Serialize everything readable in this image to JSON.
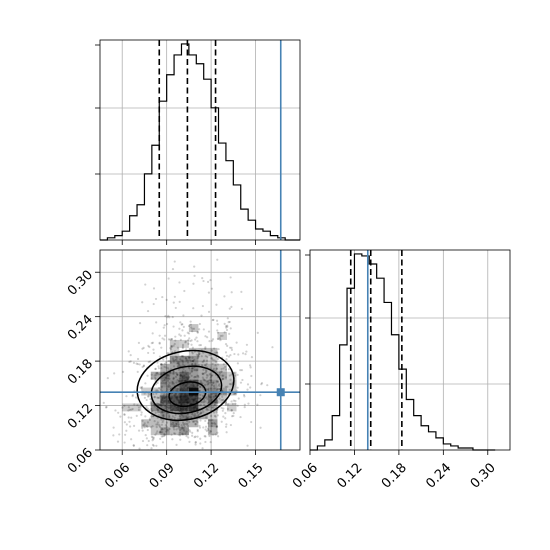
{
  "chart_data": {
    "type": "corner",
    "colors": {
      "truth": "#4682b4",
      "histogram": "#000000",
      "samples": "#000000"
    },
    "grid": true,
    "parameters": [
      {
        "axis_range": [
          0.045,
          0.18
        ],
        "ticks": [
          0.06,
          0.09,
          0.12,
          0.15
        ],
        "tick_labels": [
          "0.06",
          "0.09",
          "0.12",
          "0.15"
        ],
        "quantiles": [
          0.085,
          0.104,
          0.123
        ],
        "truth": 0.167,
        "histogram": {
          "bin_edges": [
            0.045,
            0.05,
            0.055,
            0.06,
            0.065,
            0.07,
            0.075,
            0.08,
            0.085,
            0.09,
            0.095,
            0.1,
            0.105,
            0.11,
            0.115,
            0.12,
            0.125,
            0.13,
            0.135,
            0.14,
            0.145,
            0.15,
            0.155,
            0.16,
            0.165,
            0.17,
            0.175,
            0.18
          ],
          "counts": [
            0,
            1,
            2,
            4,
            11,
            16,
            30,
            43,
            63,
            75,
            84,
            89,
            84,
            80,
            73,
            60,
            44,
            36,
            25,
            14,
            9,
            5,
            4,
            2,
            1,
            0,
            0
          ]
        }
      },
      {
        "axis_range": [
          0.06,
          0.33
        ],
        "ticks": [
          0.06,
          0.12,
          0.18,
          0.24,
          0.3
        ],
        "tick_labels": [
          "0.06",
          "0.12",
          "0.18",
          "0.24",
          "0.30"
        ],
        "quantiles": [
          0.115,
          0.142,
          0.184
        ],
        "truth": 0.138,
        "histogram": {
          "bin_edges": [
            0.06,
            0.07,
            0.08,
            0.09,
            0.1,
            0.11,
            0.12,
            0.13,
            0.14,
            0.15,
            0.16,
            0.17,
            0.18,
            0.19,
            0.2,
            0.21,
            0.22,
            0.23,
            0.24,
            0.25,
            0.26,
            0.27,
            0.28,
            0.29,
            0.3,
            0.31
          ],
          "counts": [
            0,
            2,
            5,
            17,
            52,
            80,
            97,
            96,
            92,
            85,
            73,
            57,
            40,
            25,
            17,
            12,
            9,
            6,
            3,
            2,
            1,
            1,
            0,
            0,
            0
          ]
        }
      }
    ],
    "joint": {
      "center": [
        0.103,
        0.135
      ],
      "contour_levels": [
        "inner",
        "middle",
        "outer"
      ]
    }
  }
}
